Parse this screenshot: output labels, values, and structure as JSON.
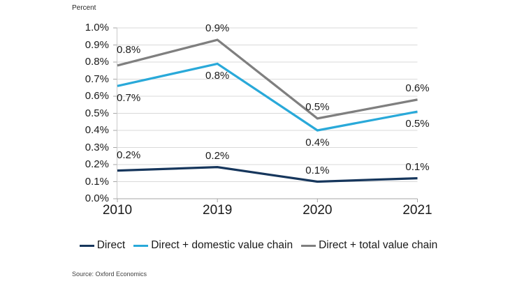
{
  "source": "Source: Oxford Economics",
  "chart_data": {
    "type": "line",
    "title": "",
    "y_axis": {
      "title": "Percent",
      "min": 0,
      "max": 1.0,
      "step": 0.1,
      "tick_labels": [
        "0.0%",
        "0.1%",
        "0.2%",
        "0.3%",
        "0.4%",
        "0.5%",
        "0.6%",
        "0.7%",
        "0.8%",
        "0.9%",
        "1.0%"
      ]
    },
    "categories": [
      "2010",
      "2019",
      "2020",
      "2021"
    ],
    "series": [
      {
        "name": "Direct",
        "color": "#16365C",
        "values": [
          0.165,
          0.185,
          0.1,
          0.12
        ],
        "point_labels": [
          "0.2%",
          "0.2%",
          "0.1%",
          "0.1%"
        ],
        "label_position": "above"
      },
      {
        "name": "Direct + domestic value chain",
        "color": "#29A9D9",
        "values": [
          0.66,
          0.79,
          0.4,
          0.51
        ],
        "point_labels": [
          "0.7%",
          "0.8%",
          "0.4%",
          "0.5%"
        ],
        "label_position": "below"
      },
      {
        "name": "Direct + total value chain",
        "color": "#7F7F7F",
        "values": [
          0.78,
          0.93,
          0.47,
          0.58
        ],
        "point_labels": [
          "0.8%",
          "0.9%",
          "0.5%",
          "0.6%"
        ],
        "label_position": "above"
      }
    ],
    "grid": true,
    "legend_position": "bottom",
    "colors": {
      "gridline": "#D9D9D9",
      "axis_line": "#A6A6A6",
      "y_axis_line": "#C9C9C9",
      "text": "#1a1a1a"
    }
  }
}
